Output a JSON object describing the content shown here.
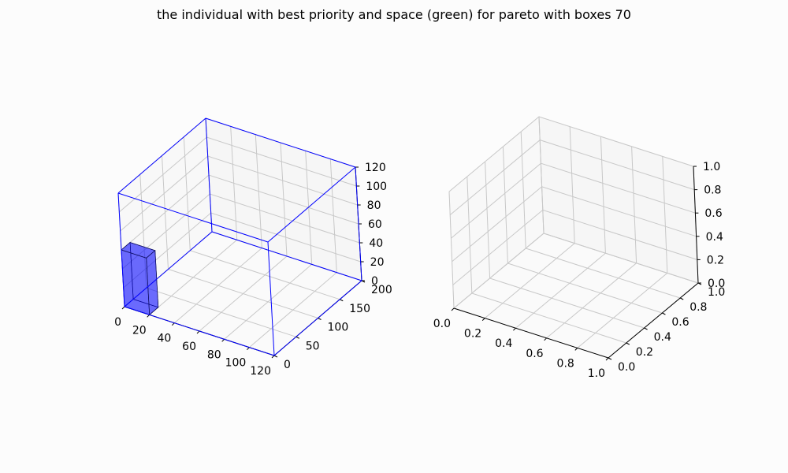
{
  "figure": {
    "title": "the individual with best priority and space (green) for pareto with boxes 70"
  },
  "chart_data": [
    {
      "type": "3d-box",
      "xlim": [
        0,
        120
      ],
      "ylim": [
        0,
        200
      ],
      "zlim": [
        0,
        120
      ],
      "x_ticks": [
        "0",
        "20",
        "40",
        "60",
        "80",
        "100",
        "120"
      ],
      "y_ticks": [
        "0",
        "50",
        "100",
        "150",
        "200"
      ],
      "z_ticks": [
        "0",
        "20",
        "40",
        "60",
        "80",
        "100",
        "120"
      ],
      "container": {
        "x": [
          0,
          120
        ],
        "y": [
          0,
          200
        ],
        "z": [
          0,
          120
        ],
        "color": "#0000ff"
      },
      "boxes": [
        {
          "x": [
            0,
            20
          ],
          "y": [
            0,
            20
          ],
          "z": [
            0,
            60
          ],
          "color": "#0000ff",
          "alpha": 0.55
        }
      ],
      "grid": true
    },
    {
      "type": "3d-empty",
      "xlim": [
        0,
        1
      ],
      "ylim": [
        0,
        1
      ],
      "zlim": [
        0,
        1
      ],
      "x_ticks": [
        "0.0",
        "0.2",
        "0.4",
        "0.6",
        "0.8",
        "1.0"
      ],
      "y_ticks": [
        "0.0",
        "0.2",
        "0.4",
        "0.6",
        "0.8",
        "1.0"
      ],
      "z_ticks": [
        "0.0",
        "0.2",
        "0.4",
        "0.6",
        "0.8",
        "1.0"
      ],
      "grid": true
    }
  ]
}
